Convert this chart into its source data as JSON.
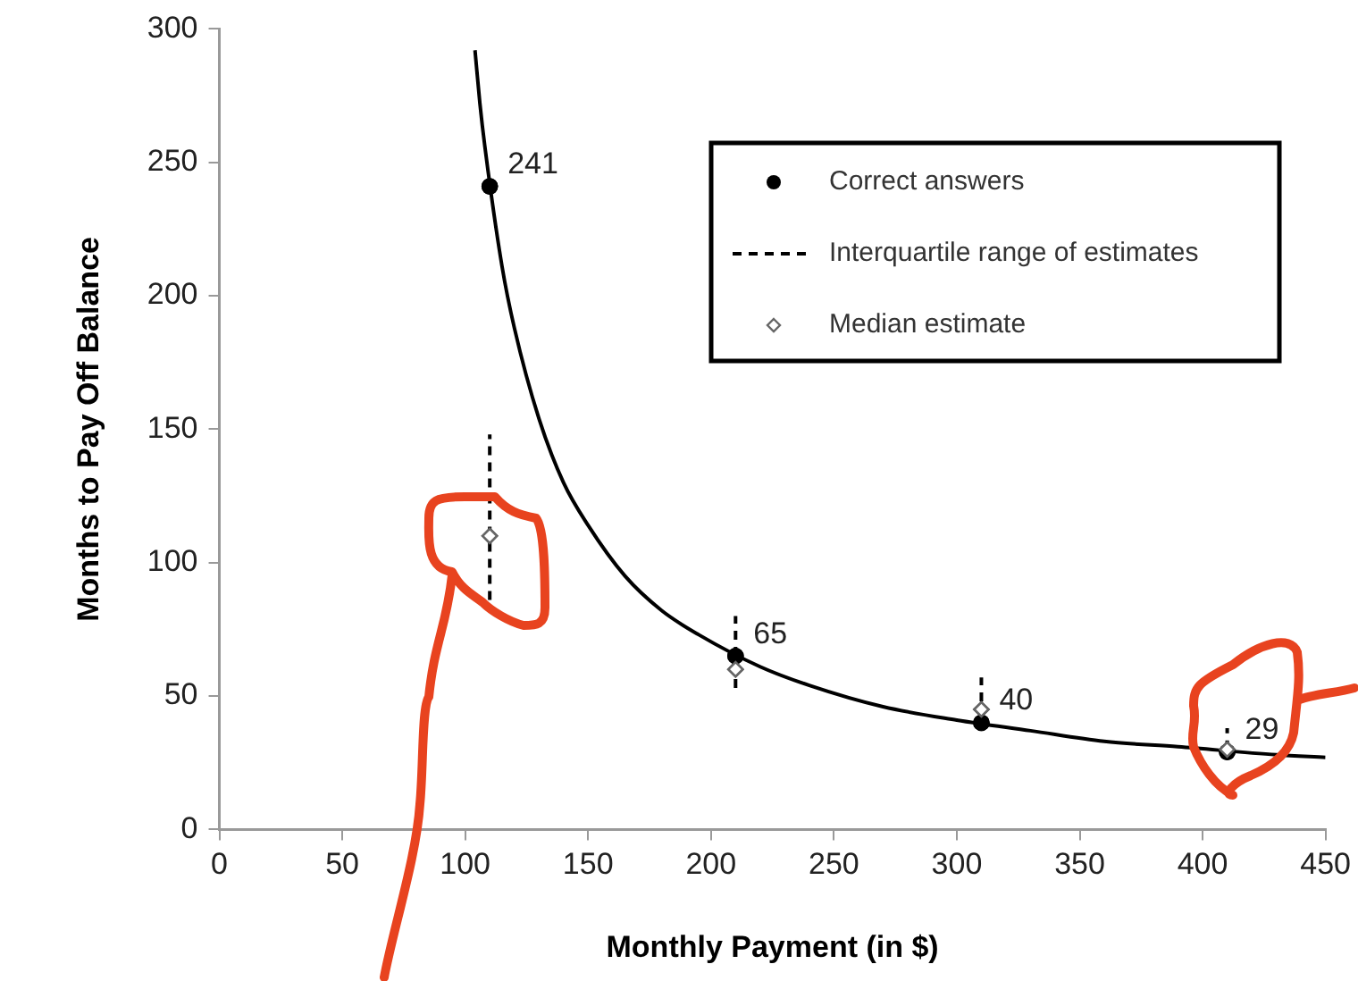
{
  "chart_data": {
    "type": "line",
    "xlabel": "Monthly Payment (in $)",
    "ylabel": "Months to Pay Off Balance",
    "xlim": [
      0,
      450
    ],
    "xticks": [
      0,
      50,
      100,
      150,
      200,
      250,
      300,
      350,
      400,
      450
    ],
    "ylim": [
      0,
      300
    ],
    "yticks": [
      0,
      50,
      100,
      150,
      200,
      250,
      300
    ],
    "grid": false,
    "legend": "top right",
    "annotations": [
      "Interquartile range of estimates"
    ],
    "series": [
      {
        "color": "#000000",
        "marker": "none",
        "line_style": "solid",
        "x": [
          104,
          106,
          108,
          115,
          120,
          130,
          140,
          150,
          165,
          180,
          195,
          220,
          240,
          270,
          300,
          330,
          360,
          390,
          430,
          450
        ],
        "values": [
          292,
          272,
          256,
          211,
          188,
          154,
          130,
          114,
          95,
          82,
          73,
          61,
          54,
          46,
          41,
          37,
          33,
          31,
          28,
          27
        ]
      },
      {
        "name": "Correct answers",
        "type": "scatter",
        "color": "#000000",
        "marker": "circle",
        "x": [
          110,
          210,
          310,
          410
        ],
        "values": [
          241,
          65,
          40,
          29
        ],
        "value_labels": [
          "241",
          "65",
          "40",
          "29"
        ]
      },
      {
        "name": "Median estimate",
        "type": "scatter",
        "color": "#666666",
        "marker": "diamond",
        "line_style": "dashed",
        "x": [
          110,
          210,
          310,
          410
        ],
        "values": [
          110,
          60,
          45,
          30
        ],
        "errors": [
          [
            86,
            148
          ],
          [
            53,
            80
          ],
          [
            48,
            57
          ],
          [
            30,
            38
          ]
        ]
      }
    ]
  }
}
